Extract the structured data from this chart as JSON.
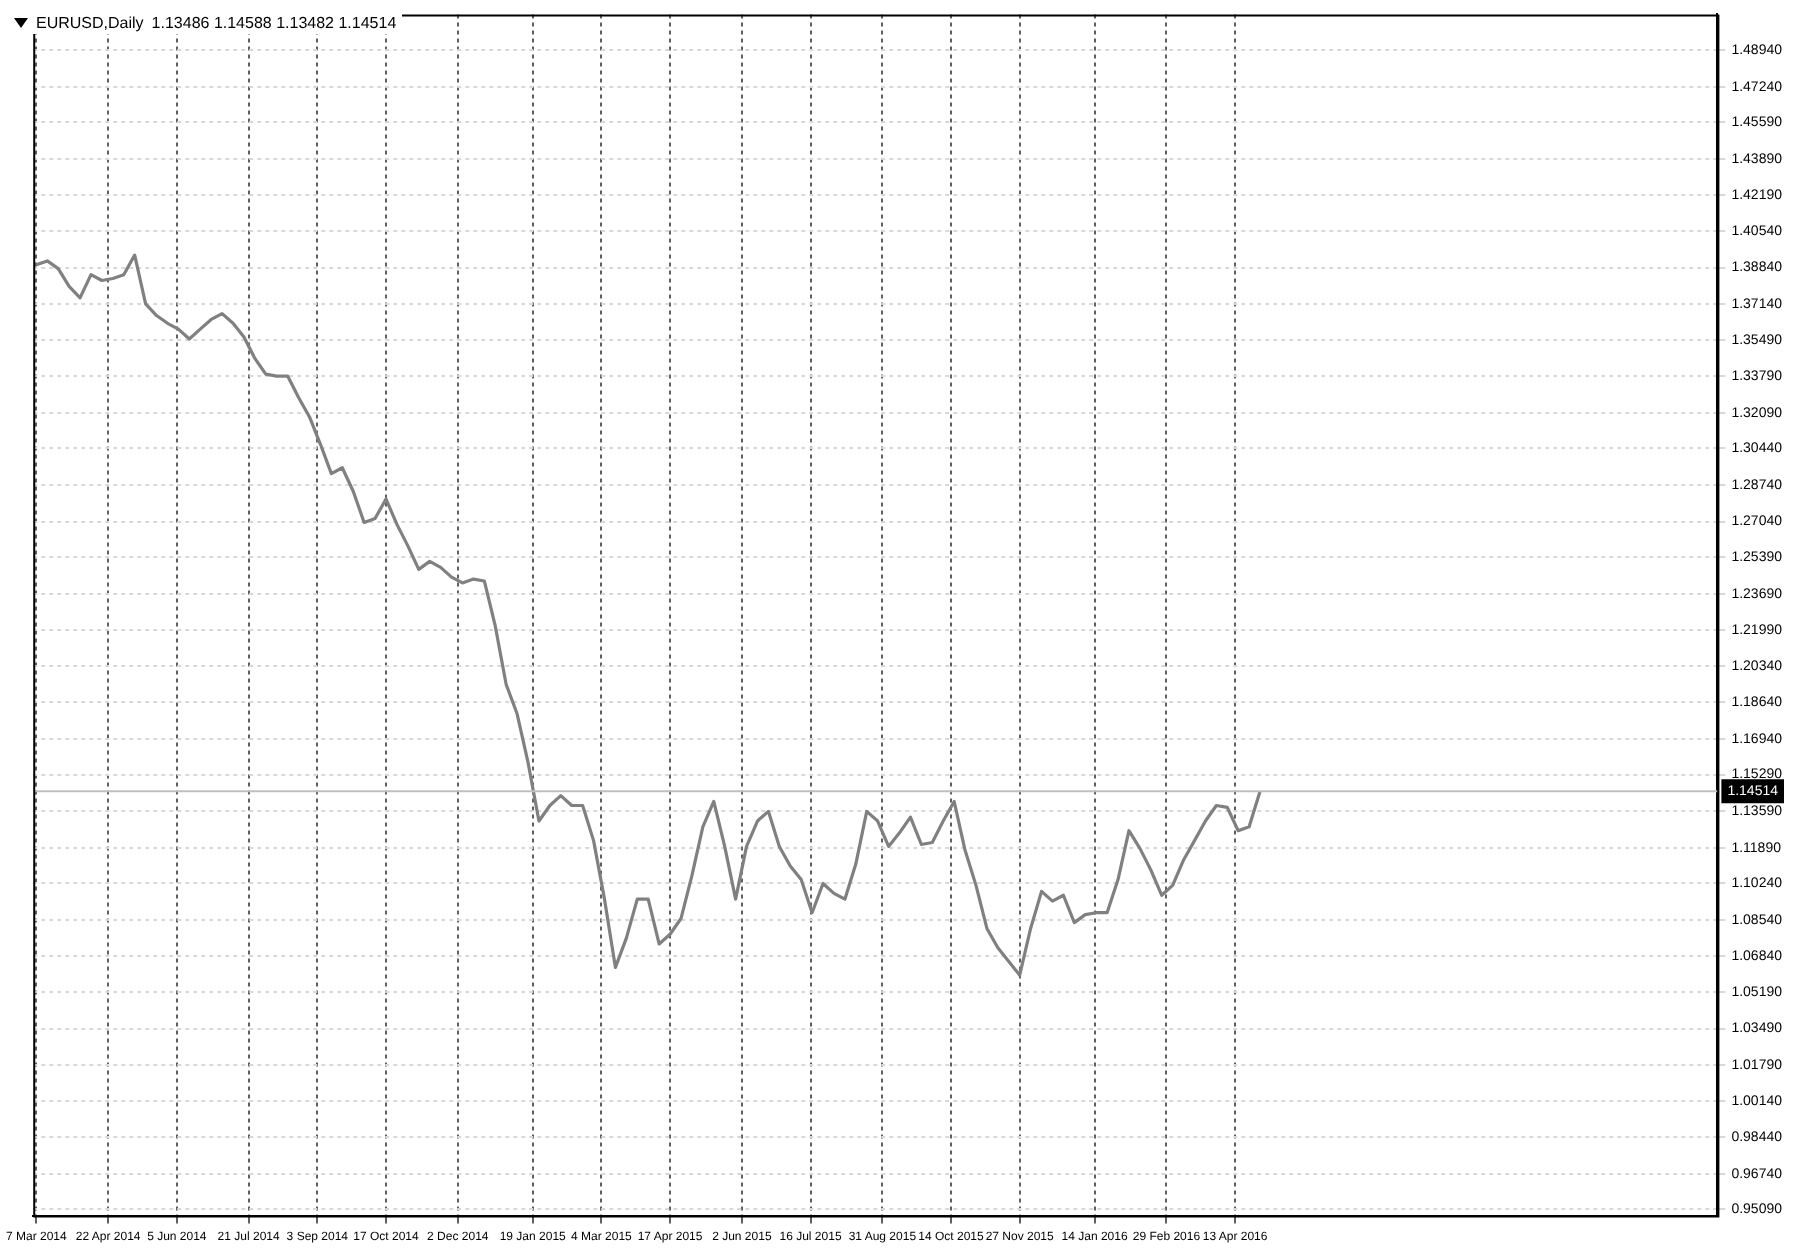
{
  "chart_data": {
    "type": "line",
    "title": "EURUSD,Daily",
    "subtitle": "1.13486 1.14588 1.13482 1.14514",
    "x": [
      "2014-03-07",
      "2014-03-14",
      "2014-03-21",
      "2014-03-28",
      "2014-04-04",
      "2014-04-11",
      "2014-04-18",
      "2014-04-25",
      "2014-05-02",
      "2014-05-09",
      "2014-05-16",
      "2014-05-23",
      "2014-05-30",
      "2014-06-06",
      "2014-06-13",
      "2014-06-20",
      "2014-06-27",
      "2014-07-04",
      "2014-07-11",
      "2014-07-18",
      "2014-07-25",
      "2014-08-01",
      "2014-08-08",
      "2014-08-15",
      "2014-08-22",
      "2014-08-29",
      "2014-09-05",
      "2014-09-12",
      "2014-09-19",
      "2014-09-26",
      "2014-10-03",
      "2014-10-10",
      "2014-10-17",
      "2014-10-24",
      "2014-10-31",
      "2014-11-07",
      "2014-11-14",
      "2014-11-21",
      "2014-11-28",
      "2014-12-05",
      "2014-12-12",
      "2014-12-19",
      "2014-12-26",
      "2015-01-02",
      "2015-01-09",
      "2015-01-16",
      "2015-01-23",
      "2015-01-30",
      "2015-02-06",
      "2015-02-13",
      "2015-02-20",
      "2015-02-27",
      "2015-03-06",
      "2015-03-13",
      "2015-03-20",
      "2015-03-27",
      "2015-04-03",
      "2015-04-10",
      "2015-04-17",
      "2015-04-24",
      "2015-05-01",
      "2015-05-08",
      "2015-05-15",
      "2015-05-22",
      "2015-05-29",
      "2015-06-05",
      "2015-06-12",
      "2015-06-19",
      "2015-06-26",
      "2015-07-03",
      "2015-07-10",
      "2015-07-17",
      "2015-07-24",
      "2015-07-31",
      "2015-08-07",
      "2015-08-14",
      "2015-08-21",
      "2015-08-28",
      "2015-09-04",
      "2015-09-11",
      "2015-09-18",
      "2015-09-25",
      "2015-10-02",
      "2015-10-09",
      "2015-10-16",
      "2015-10-23",
      "2015-10-30",
      "2015-11-06",
      "2015-11-13",
      "2015-11-20",
      "2015-11-27",
      "2015-12-04",
      "2015-12-11",
      "2015-12-18",
      "2015-12-25",
      "2016-01-01",
      "2016-01-08",
      "2016-01-15",
      "2016-01-22",
      "2016-01-29",
      "2016-02-05",
      "2016-02-12",
      "2016-02-19",
      "2016-02-26",
      "2016-03-04",
      "2016-03-11",
      "2016-03-18",
      "2016-03-25",
      "2016-04-01",
      "2016-04-08",
      "2016-04-15",
      "2016-04-22",
      "2016-04-29"
    ],
    "series": [
      {
        "color": "#808080",
        "values": [
          1.3897,
          1.3915,
          1.3879,
          1.3797,
          1.3743,
          1.3851,
          1.3824,
          1.3833,
          1.3851,
          1.3942,
          1.3715,
          1.3661,
          1.3625,
          1.3598,
          1.3552,
          1.3598,
          1.3643,
          1.367,
          1.3625,
          1.3561,
          1.3462,
          1.3389,
          1.338,
          1.338,
          1.328,
          1.319,
          1.3063,
          1.2927,
          1.2954,
          1.2845,
          1.27,
          1.2718,
          1.2809,
          1.2691,
          1.2591,
          1.2482,
          1.2519,
          1.2491,
          1.2446,
          1.2419,
          1.2437,
          1.2428,
          1.2219,
          1.1947,
          1.1811,
          1.1585,
          1.1313,
          1.1385,
          1.1431,
          1.1385,
          1.1385,
          1.1222,
          1.095,
          1.0633,
          1.0769,
          1.095,
          1.095,
          1.0742,
          1.0787,
          1.086,
          1.1059,
          1.1286,
          1.1404,
          1.1195,
          1.095,
          1.1195,
          1.1313,
          1.1358,
          1.1195,
          1.1104,
          1.1041,
          1.0887,
          1.1023,
          1.0977,
          1.095,
          1.1113,
          1.1358,
          1.1313,
          1.1195,
          1.1258,
          1.1331,
          1.1204,
          1.1213,
          1.1313,
          1.1404,
          1.1177,
          1.1014,
          1.0814,
          1.0724,
          1.066,
          1.0597,
          1.0814,
          1.0986,
          1.0941,
          1.0968,
          1.0841,
          1.0878,
          1.0887,
          1.0887,
          1.1041,
          1.1268,
          1.1186,
          1.1086,
          1.0968,
          1.1014,
          1.1132,
          1.1222,
          1.1313,
          1.1385,
          1.1376,
          1.1268,
          1.1286,
          1.1451
        ]
      }
    ],
    "xlim": [
      "2014-03-05",
      "2017-02-16"
    ],
    "xticks": [
      {
        "value": "2014-03-07",
        "label": "7 Mar 2014"
      },
      {
        "value": "2014-04-22",
        "label": "22 Apr 2014"
      },
      {
        "value": "2014-06-05",
        "label": "5 Jun 2014"
      },
      {
        "value": "2014-07-21",
        "label": "21 Jul 2014"
      },
      {
        "value": "2014-09-03",
        "label": "3 Sep 2014"
      },
      {
        "value": "2014-10-17",
        "label": "17 Oct 2014"
      },
      {
        "value": "2014-12-02",
        "label": "2 Dec 2014"
      },
      {
        "value": "2015-01-19",
        "label": "19 Jan 2015"
      },
      {
        "value": "2015-03-04",
        "label": "4 Mar 2015"
      },
      {
        "value": "2015-04-17",
        "label": "17 Apr 2015"
      },
      {
        "value": "2015-06-02",
        "label": "2 Jun 2015"
      },
      {
        "value": "2015-07-16",
        "label": "16 Jul 2015"
      },
      {
        "value": "2015-08-31",
        "label": "31 Aug 2015"
      },
      {
        "value": "2015-10-14",
        "label": "14 Oct 2015"
      },
      {
        "value": "2015-11-27",
        "label": "27 Nov 2015"
      },
      {
        "value": "2016-01-14",
        "label": "14 Jan 2016"
      },
      {
        "value": "2016-02-29",
        "label": "29 Feb 2016"
      },
      {
        "value": "2016-04-13",
        "label": "13 Apr 2016"
      }
    ],
    "ylim": [
      0.948,
      1.506
    ],
    "yticks": [
      {
        "value": 0.9509,
        "label": "0.95090"
      },
      {
        "value": 0.9674,
        "label": "0.96740"
      },
      {
        "value": 0.9844,
        "label": "0.98440"
      },
      {
        "value": 1.0014,
        "label": "1.00140"
      },
      {
        "value": 1.0179,
        "label": "1.01790"
      },
      {
        "value": 1.0349,
        "label": "1.03490"
      },
      {
        "value": 1.0519,
        "label": "1.05190"
      },
      {
        "value": 1.0684,
        "label": "1.06840"
      },
      {
        "value": 1.0854,
        "label": "1.08540"
      },
      {
        "value": 1.1024,
        "label": "1.10240"
      },
      {
        "value": 1.1189,
        "label": "1.11890"
      },
      {
        "value": 1.1359,
        "label": "1.13590"
      },
      {
        "value": 1.1529,
        "label": "1.15290"
      },
      {
        "value": 1.1694,
        "label": "1.16940"
      },
      {
        "value": 1.1864,
        "label": "1.18640"
      },
      {
        "value": 1.2034,
        "label": "1.20340"
      },
      {
        "value": 1.2199,
        "label": "1.21990"
      },
      {
        "value": 1.2369,
        "label": "1.23690"
      },
      {
        "value": 1.2539,
        "label": "1.25390"
      },
      {
        "value": 1.2704,
        "label": "1.27040"
      },
      {
        "value": 1.2874,
        "label": "1.28740"
      },
      {
        "value": 1.3044,
        "label": "1.30440"
      },
      {
        "value": 1.3209,
        "label": "1.32090"
      },
      {
        "value": 1.3379,
        "label": "1.33790"
      },
      {
        "value": 1.3549,
        "label": "1.35490"
      },
      {
        "value": 1.3714,
        "label": "1.37140"
      },
      {
        "value": 1.3884,
        "label": "1.38840"
      },
      {
        "value": 1.4054,
        "label": "1.40540"
      },
      {
        "value": 1.4219,
        "label": "1.42190"
      },
      {
        "value": 1.4389,
        "label": "1.43890"
      },
      {
        "value": 1.4559,
        "label": "1.45590"
      },
      {
        "value": 1.4724,
        "label": "1.47240"
      },
      {
        "value": 1.4894,
        "label": "1.48940"
      }
    ],
    "ref_lines": [
      {
        "axis": "y",
        "value": 1.14514,
        "label": "1.14514",
        "color": "#c0c0c0"
      }
    ],
    "grid": true,
    "legend": false,
    "marker": "none",
    "line_style": "solid"
  }
}
